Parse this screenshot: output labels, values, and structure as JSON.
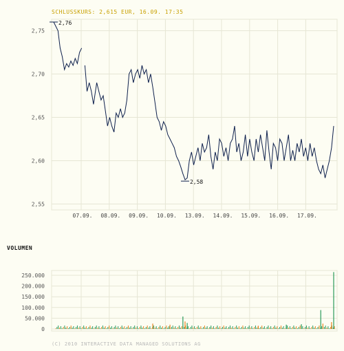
{
  "header": {
    "price_title": "SCHLUSSKURS: 2,615 EUR, 16.09. 17:35"
  },
  "volume_title": "VOLUMEN",
  "footer": {
    "copyright": "(C) 2010 INTERACTIVE DATA MANAGED SOLUTIONS AG"
  },
  "colors": {
    "background": "#fdfdf3",
    "grid": "#e6e6d4",
    "line": "#0d1f4c",
    "title": "#c8a000",
    "vol_green": "#2a9a5a",
    "vol_orange": "#e8831e"
  },
  "chart_data": [
    {
      "type": "line",
      "title": "SCHLUSSKURS: 2,615 EUR, 16.09. 17:35",
      "categories": [
        "07.09.",
        "08.09.",
        "09.09.",
        "10.09.",
        "13.09.",
        "14.09.",
        "15.09.",
        "16.09.",
        "17.09."
      ],
      "ylim": [
        2.54,
        2.76
      ],
      "yticks": [
        "2,55",
        "2,60",
        "2,65",
        "2,70",
        "2,75"
      ],
      "ytick_values": [
        2.55,
        2.6,
        2.65,
        2.7,
        2.75
      ],
      "grid": true,
      "annotations": [
        {
          "text": "2,76",
          "kind": "max"
        },
        {
          "text": "2,58",
          "kind": "min"
        }
      ],
      "series": [
        {
          "values": [
            [
              0.0,
              2.76
            ],
            [
              0.2,
              2.75
            ],
            [
              0.3,
              2.73
            ],
            [
              0.4,
              2.72
            ],
            [
              0.5,
              2.705
            ],
            [
              0.6,
              2.712
            ],
            [
              0.7,
              2.708
            ],
            [
              0.8,
              2.715
            ],
            [
              0.9,
              2.71
            ],
            [
              1.0,
              2.718
            ],
            [
              1.1,
              2.712
            ],
            [
              1.2,
              2.725
            ],
            [
              1.3,
              2.73
            ],
            [
              1.45,
              2.71
            ],
            [
              1.55,
              2.68
            ],
            [
              1.65,
              2.69
            ],
            [
              1.75,
              2.68
            ],
            [
              1.85,
              2.665
            ],
            [
              2.0,
              2.69
            ],
            [
              2.1,
              2.68
            ],
            [
              2.2,
              2.67
            ],
            [
              2.3,
              2.675
            ],
            [
              2.4,
              2.658
            ],
            [
              2.5,
              2.64
            ],
            [
              2.6,
              2.65
            ],
            [
              2.7,
              2.64
            ],
            [
              2.8,
              2.633
            ],
            [
              2.9,
              2.655
            ],
            [
              3.0,
              2.65
            ],
            [
              3.1,
              2.66
            ],
            [
              3.2,
              2.65
            ],
            [
              3.3,
              2.655
            ],
            [
              3.4,
              2.67
            ],
            [
              3.5,
              2.7
            ],
            [
              3.6,
              2.705
            ],
            [
              3.7,
              2.69
            ],
            [
              3.8,
              2.7
            ],
            [
              3.9,
              2.705
            ],
            [
              4.0,
              2.695
            ],
            [
              4.1,
              2.71
            ],
            [
              4.2,
              2.7
            ],
            [
              4.3,
              2.705
            ],
            [
              4.4,
              2.69
            ],
            [
              4.5,
              2.7
            ],
            [
              4.6,
              2.685
            ],
            [
              4.7,
              2.668
            ],
            [
              4.8,
              2.65
            ],
            [
              4.9,
              2.645
            ],
            [
              5.0,
              2.635
            ],
            [
              5.1,
              2.645
            ],
            [
              5.2,
              2.64
            ],
            [
              5.3,
              2.63
            ],
            [
              5.4,
              2.625
            ],
            [
              5.5,
              2.62
            ],
            [
              5.6,
              2.615
            ],
            [
              5.7,
              2.605
            ],
            [
              5.8,
              2.6
            ],
            [
              5.9,
              2.593
            ],
            [
              6.0,
              2.585
            ],
            [
              6.1,
              2.578
            ],
            [
              6.2,
              2.58
            ],
            [
              6.3,
              2.6
            ],
            [
              6.4,
              2.61
            ],
            [
              6.5,
              2.595
            ],
            [
              6.6,
              2.605
            ],
            [
              6.7,
              2.615
            ],
            [
              6.8,
              2.6
            ],
            [
              6.9,
              2.62
            ],
            [
              7.0,
              2.61
            ],
            [
              7.1,
              2.615
            ],
            [
              7.2,
              2.63
            ],
            [
              7.3,
              2.605
            ],
            [
              7.4,
              2.59
            ],
            [
              7.5,
              2.61
            ],
            [
              7.6,
              2.6
            ],
            [
              7.7,
              2.625
            ],
            [
              7.8,
              2.62
            ],
            [
              7.9,
              2.605
            ],
            [
              8.0,
              2.615
            ],
            [
              8.1,
              2.6
            ],
            [
              8.2,
              2.62
            ],
            [
              8.3,
              2.625
            ],
            [
              8.4,
              2.64
            ],
            [
              8.5,
              2.61
            ],
            [
              8.6,
              2.62
            ],
            [
              8.7,
              2.6
            ],
            [
              8.8,
              2.61
            ],
            [
              8.9,
              2.63
            ],
            [
              9.0,
              2.605
            ],
            [
              9.1,
              2.625
            ],
            [
              9.2,
              2.61
            ],
            [
              9.3,
              2.6
            ],
            [
              9.4,
              2.625
            ],
            [
              9.5,
              2.61
            ],
            [
              9.6,
              2.63
            ],
            [
              9.7,
              2.615
            ],
            [
              9.8,
              2.6
            ],
            [
              9.9,
              2.635
            ],
            [
              10.0,
              2.61
            ],
            [
              10.1,
              2.59
            ],
            [
              10.2,
              2.62
            ],
            [
              10.3,
              2.615
            ],
            [
              10.4,
              2.6
            ],
            [
              10.5,
              2.625
            ],
            [
              10.6,
              2.62
            ],
            [
              10.7,
              2.6
            ],
            [
              10.8,
              2.615
            ],
            [
              10.9,
              2.63
            ],
            [
              11.0,
              2.6
            ],
            [
              11.1,
              2.612
            ],
            [
              11.2,
              2.6
            ],
            [
              11.3,
              2.62
            ],
            [
              11.4,
              2.61
            ],
            [
              11.5,
              2.625
            ],
            [
              11.6,
              2.605
            ],
            [
              11.7,
              2.615
            ],
            [
              11.8,
              2.6
            ],
            [
              11.9,
              2.62
            ],
            [
              12.0,
              2.605
            ],
            [
              12.1,
              2.615
            ],
            [
              12.2,
              2.6
            ],
            [
              12.3,
              2.59
            ],
            [
              12.4,
              2.585
            ],
            [
              12.5,
              2.595
            ],
            [
              12.6,
              2.58
            ],
            [
              12.7,
              2.59
            ],
            [
              12.8,
              2.6
            ],
            [
              12.9,
              2.615
            ],
            [
              13.0,
              2.64
            ]
          ]
        }
      ]
    },
    {
      "type": "bar",
      "title": "VOLUMEN",
      "yticks": [
        "0",
        "50.000",
        "100.000",
        "150.000",
        "200.000",
        "250.000"
      ],
      "ytick_values": [
        0,
        50000,
        100000,
        150000,
        200000,
        250000
      ],
      "ylim": [
        0,
        275000
      ],
      "series": [
        {
          "name": "green",
          "color": "#2a9a5a",
          "values": [
            [
              6.0,
              58000
            ],
            [
              6.2,
              28000
            ],
            [
              10.8,
              20000
            ],
            [
              11.5,
              22000
            ],
            [
              12.4,
              88000
            ],
            [
              13.0,
              265000
            ]
          ]
        },
        {
          "name": "orange",
          "color": "#e8831e",
          "values": [
            [
              4.6,
              25000
            ],
            [
              5.4,
              20000
            ],
            [
              6.1,
              35000
            ],
            [
              9.5,
              15000
            ],
            [
              12.5,
              25000
            ],
            [
              12.9,
              32000
            ]
          ]
        }
      ]
    }
  ]
}
